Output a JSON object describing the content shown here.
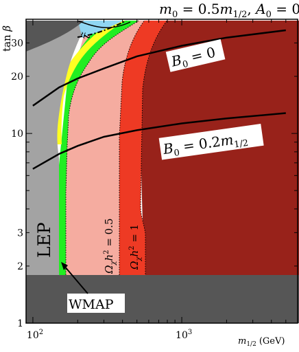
{
  "chart_data": {
    "type": "area",
    "title": "m0 = 0.5m1/2, A0 = 0",
    "title_parts": {
      "m0": "m",
      "m0_sub": "0",
      "equals": " = 0.5",
      "m": "m",
      "m_sub": "1/2",
      "A0": "A",
      "A0_sub": "0",
      "a_equals": " = 0"
    },
    "xlabel": "m1/2 (GeV)",
    "xlabel_parts": {
      "m": "m",
      "sub": "1/2",
      "unit": "(GeV)"
    },
    "ylabel": "tan β",
    "x_scale": "log",
    "y_scale": "log",
    "xlim": [
      90,
      6000
    ],
    "ylim": [
      1,
      40
    ],
    "x_tick_labels": [
      {
        "value": 100,
        "base": "10",
        "exp": "2"
      },
      {
        "value": 1000,
        "base": "10",
        "exp": "3"
      }
    ],
    "y_tick_labels": [
      {
        "value": 1,
        "label": "1"
      },
      {
        "value": 2,
        "label": "2"
      },
      {
        "value": 3,
        "label": "3"
      },
      {
        "value": 10,
        "label": "10"
      },
      {
        "value": 20,
        "label": "20"
      },
      {
        "value": 30,
        "label": "30"
      }
    ],
    "regions": [
      {
        "name": "dark-red-region",
        "color": "#98221a"
      },
      {
        "name": "red-region",
        "color": "#ee3a24"
      },
      {
        "name": "pink-region",
        "color": "#f5aca0"
      },
      {
        "name": "green-wmap-band",
        "color": "#22ee22"
      },
      {
        "name": "yellow-band",
        "color": "#ffff22"
      },
      {
        "name": "lep-gray-region",
        "color": "#a3a3a3"
      },
      {
        "name": "dark-gray-bottom",
        "color": "#565656"
      },
      {
        "name": "light-blue-region",
        "color": "#90d6f2"
      }
    ],
    "series": [
      {
        "name": "B0 = 0",
        "x": [
          100,
          150,
          200,
          300,
          500,
          1000,
          2000,
          5000
        ],
        "y": [
          14,
          17.5,
          19.5,
          22,
          25.5,
          29,
          32,
          35
        ]
      },
      {
        "name": "B0 = 0.2m1/2",
        "x": [
          100,
          150,
          200,
          300,
          500,
          1000,
          2000,
          5000
        ],
        "y": [
          6.5,
          7.8,
          8.6,
          9.6,
          10.4,
          11.3,
          12,
          12.8
        ]
      }
    ],
    "contours": [
      {
        "name": "Ωχh² = 0.5",
        "x_at_low_tanb": 380
      },
      {
        "name": "Ωχh² = 1",
        "x_at_low_tanb": 550
      }
    ],
    "labels": {
      "B0_zero": {
        "B": "B",
        "sub": "0",
        "rest": " = 0"
      },
      "B0_02": {
        "B": "B",
        "sub": "0",
        "rest": " = 0.2",
        "m": "m",
        "m_sub": "1/2"
      },
      "lep": "LEP",
      "omega_05": {
        "O": "Ω",
        "sub": "χ",
        "h": "h",
        "sup": "2",
        "rest": " = 0.5"
      },
      "omega_1": {
        "O": "Ω",
        "sub": "χ",
        "h": "h",
        "sup": "2",
        "rest": " = 1"
      },
      "stau": {
        "t": "τ̃"
      },
      "wmap": "WMAP"
    }
  }
}
